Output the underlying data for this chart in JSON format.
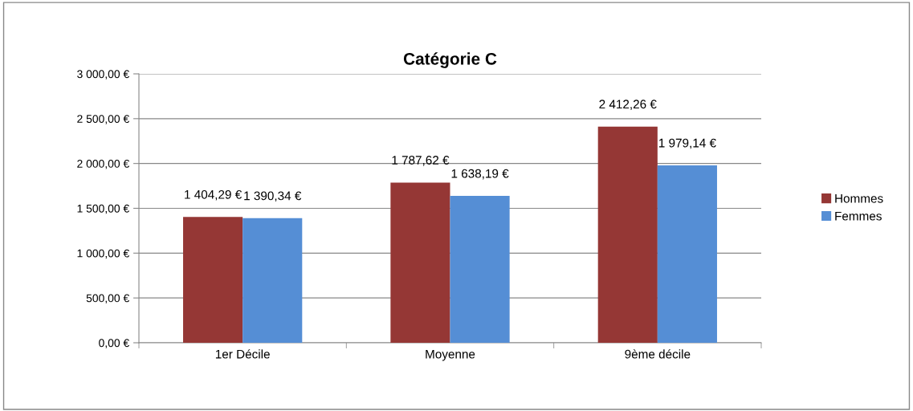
{
  "chart_data": {
    "type": "bar",
    "title": "Catégorie C",
    "categories": [
      "1er Décile",
      "Moyenne",
      "9ème décile"
    ],
    "series": [
      {
        "name": "Hommes",
        "color": "#953735",
        "values": [
          1404.29,
          1787.62,
          2412.26
        ],
        "value_labels": [
          "1 404,29 €",
          "1 787,62 €",
          "2 412,26 €"
        ]
      },
      {
        "name": "Femmes",
        "color": "#558ed5",
        "values": [
          1390.34,
          1638.19,
          1979.14
        ],
        "value_labels": [
          "1 390,34 €",
          "1 638,19 €",
          "1 979,14 €"
        ]
      }
    ],
    "ylim": [
      0,
      3000
    ],
    "yticks": [
      {
        "value": 0,
        "label": "0,00 €"
      },
      {
        "value": 500,
        "label": "500,00 €"
      },
      {
        "value": 1000,
        "label": "1 000,00 €"
      },
      {
        "value": 1500,
        "label": "1 500,00 €"
      },
      {
        "value": 2000,
        "label": "2 000,00 €"
      },
      {
        "value": 2500,
        "label": "2 500,00 €"
      },
      {
        "value": 3000,
        "label": "3 000,00 €"
      }
    ],
    "grid": "y",
    "legend": "right"
  }
}
